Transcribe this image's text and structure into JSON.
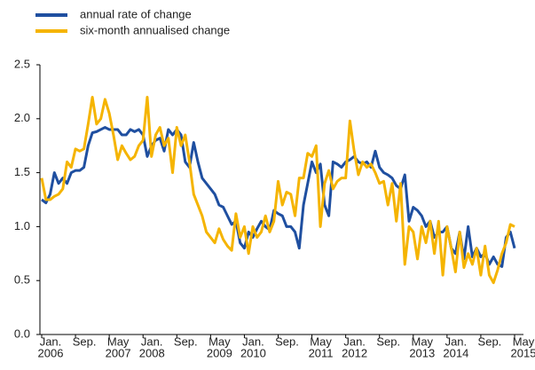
{
  "chart_data": {
    "type": "line",
    "x": [
      "2006-01",
      "2006-02",
      "2006-03",
      "2006-04",
      "2006-05",
      "2006-06",
      "2006-07",
      "2006-08",
      "2006-09",
      "2006-10",
      "2006-11",
      "2006-12",
      "2007-01",
      "2007-02",
      "2007-03",
      "2007-04",
      "2007-05",
      "2007-06",
      "2007-07",
      "2007-08",
      "2007-09",
      "2007-10",
      "2007-11",
      "2007-12",
      "2008-01",
      "2008-02",
      "2008-03",
      "2008-04",
      "2008-05",
      "2008-06",
      "2008-07",
      "2008-08",
      "2008-09",
      "2008-10",
      "2008-11",
      "2008-12",
      "2009-01",
      "2009-02",
      "2009-03",
      "2009-04",
      "2009-05",
      "2009-06",
      "2009-07",
      "2009-08",
      "2009-09",
      "2009-10",
      "2009-11",
      "2009-12",
      "2010-01",
      "2010-02",
      "2010-03",
      "2010-04",
      "2010-05",
      "2010-06",
      "2010-07",
      "2010-08",
      "2010-09",
      "2010-10",
      "2010-11",
      "2010-12",
      "2011-01",
      "2011-02",
      "2011-03",
      "2011-04",
      "2011-05",
      "2011-06",
      "2011-07",
      "2011-08",
      "2011-09",
      "2011-10",
      "2011-11",
      "2011-12",
      "2012-01",
      "2012-02",
      "2012-03",
      "2012-04",
      "2012-05",
      "2012-06",
      "2012-07",
      "2012-08",
      "2012-09",
      "2012-10",
      "2012-11",
      "2012-12",
      "2013-01",
      "2013-02",
      "2013-03",
      "2013-04",
      "2013-05",
      "2013-06",
      "2013-07",
      "2013-08",
      "2013-09",
      "2013-10",
      "2013-11",
      "2013-12",
      "2014-01",
      "2014-02",
      "2014-03",
      "2014-04",
      "2014-05",
      "2014-06",
      "2014-07",
      "2014-08",
      "2014-09",
      "2014-10",
      "2014-11",
      "2014-12",
      "2015-01",
      "2015-02",
      "2015-03",
      "2015-04",
      "2015-05"
    ],
    "series": [
      {
        "name": "annual rate of change",
        "color": "#1f4fa0",
        "values": [
          1.25,
          1.22,
          1.3,
          1.5,
          1.4,
          1.45,
          1.4,
          1.5,
          1.52,
          1.52,
          1.55,
          1.75,
          1.87,
          1.88,
          1.9,
          1.92,
          1.9,
          1.9,
          1.9,
          1.85,
          1.85,
          1.9,
          1.88,
          1.9,
          1.85,
          1.65,
          1.75,
          1.8,
          1.82,
          1.7,
          1.9,
          1.85,
          1.9,
          1.85,
          1.6,
          1.55,
          1.78,
          1.6,
          1.45,
          1.4,
          1.35,
          1.3,
          1.2,
          1.18,
          1.1,
          1.02,
          1.05,
          0.85,
          0.8,
          0.95,
          0.9,
          0.98,
          1.05,
          1.0,
          0.97,
          1.15,
          1.12,
          1.1,
          1.0,
          1.0,
          0.95,
          0.8,
          1.2,
          1.4,
          1.6,
          1.5,
          1.58,
          1.2,
          1.1,
          1.6,
          1.58,
          1.55,
          1.6,
          1.62,
          1.65,
          1.6,
          1.58,
          1.6,
          1.55,
          1.7,
          1.55,
          1.5,
          1.48,
          1.45,
          1.38,
          1.35,
          1.48,
          1.05,
          1.18,
          1.15,
          1.1,
          1.0,
          1.05,
          0.9,
          0.95,
          0.95,
          1.0,
          0.8,
          0.75,
          0.95,
          0.7,
          1.0,
          0.72,
          0.8,
          0.72,
          0.75,
          0.65,
          0.72,
          0.65,
          0.63,
          0.9,
          0.95,
          0.8
        ]
      },
      {
        "name": "six-month annualised change",
        "color": "#f5b400",
        "values": [
          1.45,
          1.25,
          1.25,
          1.28,
          1.3,
          1.35,
          1.6,
          1.55,
          1.72,
          1.7,
          1.72,
          1.95,
          2.2,
          1.95,
          2.0,
          2.18,
          2.05,
          1.85,
          1.62,
          1.75,
          1.68,
          1.62,
          1.65,
          1.75,
          1.8,
          2.2,
          1.65,
          1.85,
          1.92,
          1.75,
          1.82,
          1.5,
          1.92,
          1.75,
          1.85,
          1.6,
          1.3,
          1.2,
          1.1,
          0.95,
          0.9,
          0.85,
          0.98,
          0.88,
          0.82,
          0.78,
          1.12,
          0.9,
          1.0,
          0.75,
          1.0,
          0.9,
          0.95,
          1.1,
          0.95,
          1.05,
          1.42,
          1.2,
          1.32,
          1.3,
          1.1,
          1.45,
          1.45,
          1.68,
          1.65,
          1.75,
          1.0,
          1.4,
          1.52,
          1.35,
          1.42,
          1.45,
          1.45,
          1.98,
          1.7,
          1.48,
          1.6,
          1.55,
          1.58,
          1.5,
          1.4,
          1.42,
          1.2,
          1.4,
          1.05,
          1.4,
          0.65,
          1.0,
          0.95,
          0.7,
          1.0,
          0.85,
          1.05,
          0.75,
          1.05,
          0.55,
          1.0,
          0.8,
          0.58,
          0.95,
          0.62,
          0.75,
          0.65,
          0.8,
          0.55,
          0.82,
          0.55,
          0.48,
          0.6,
          0.75,
          0.85,
          1.02,
          1.0
        ]
      }
    ],
    "ylim": [
      0,
      2.5
    ],
    "yticks": [
      {
        "value": 0,
        "label": "0.0"
      },
      0.5,
      {
        "value": 1,
        "label": "1.0"
      },
      1.5,
      {
        "value": 2,
        "label": "2.0"
      },
      2.5
    ],
    "xticks": [
      {
        "value": "2006-01",
        "label": [
          "Jan.",
          "2006"
        ]
      },
      {
        "value": "2006-09",
        "label": [
          "Sep."
        ]
      },
      {
        "value": "2007-05",
        "label": [
          "May",
          "2007"
        ]
      },
      {
        "value": "2008-01",
        "label": [
          "Jan.",
          "2008"
        ]
      },
      {
        "value": "2008-09",
        "label": [
          "Sep."
        ]
      },
      {
        "value": "2009-05",
        "label": [
          "May",
          "2009"
        ]
      },
      {
        "value": "2010-01",
        "label": [
          "Jan.",
          "2010"
        ]
      },
      {
        "value": "2010-09",
        "label": [
          "Sep."
        ]
      },
      {
        "value": "2011-05",
        "label": [
          "May",
          "2011"
        ]
      },
      {
        "value": "2012-01",
        "label": [
          "Jan.",
          "2012"
        ]
      },
      {
        "value": "2012-09",
        "label": [
          "Sep."
        ]
      },
      {
        "value": "2013-05",
        "label": [
          "May",
          "2013"
        ]
      },
      {
        "value": "2014-01",
        "label": [
          "Jan.",
          "2014"
        ]
      },
      {
        "value": "2014-09",
        "label": [
          "Sep."
        ]
      },
      {
        "value": "2015-05",
        "label": [
          "May",
          "2015"
        ]
      }
    ],
    "legend": "top-left"
  }
}
